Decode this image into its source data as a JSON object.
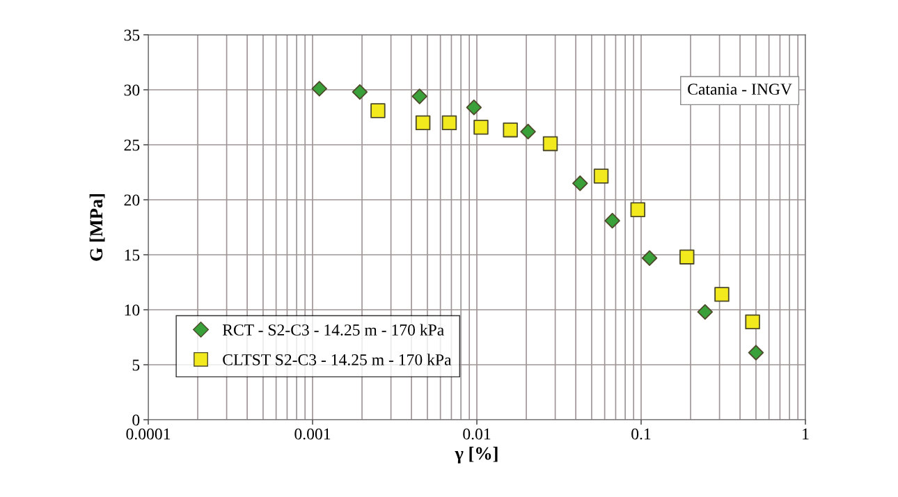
{
  "chart_data": {
    "type": "scatter",
    "xlabel": "γ [%]",
    "ylabel": "G [MPa]",
    "log": "x",
    "grid": true,
    "legend": "bottom left",
    "xlim": [
      0.0001,
      1
    ],
    "xticks": [
      0.0001,
      0.001,
      0.01,
      0.1,
      1
    ],
    "ylim": [
      0,
      35
    ],
    "yticks": [
      0,
      5,
      10,
      15,
      20,
      25,
      30,
      35
    ],
    "annotations": [
      "Catania - INGV"
    ],
    "series": [
      {
        "name": "RCT - S2-C3 - 14.25 m - 170 kPa",
        "color": "#3aa03a",
        "marker": "diamond",
        "x": [
          0.0011,
          0.00194,
          0.00448,
          0.0096,
          0.0205,
          0.0425,
          0.0668,
          0.1125,
          0.245,
          0.5
        ],
        "values": [
          30.1,
          29.8,
          29.4,
          28.4,
          26.2,
          21.5,
          18.1,
          14.7,
          9.8,
          6.1
        ]
      },
      {
        "name": "CLTST S2-C3 - 14.25 m - 170 kPa",
        "color": "#f2ea1c",
        "marker": "square",
        "x": [
          0.0025,
          0.0047,
          0.0068,
          0.0106,
          0.016,
          0.028,
          0.0571,
          0.0955,
          0.19,
          0.31,
          0.477
        ],
        "values": [
          28.1,
          27.0,
          27.0,
          26.6,
          26.35,
          25.1,
          22.15,
          19.1,
          14.8,
          11.4,
          8.9
        ]
      }
    ]
  }
}
